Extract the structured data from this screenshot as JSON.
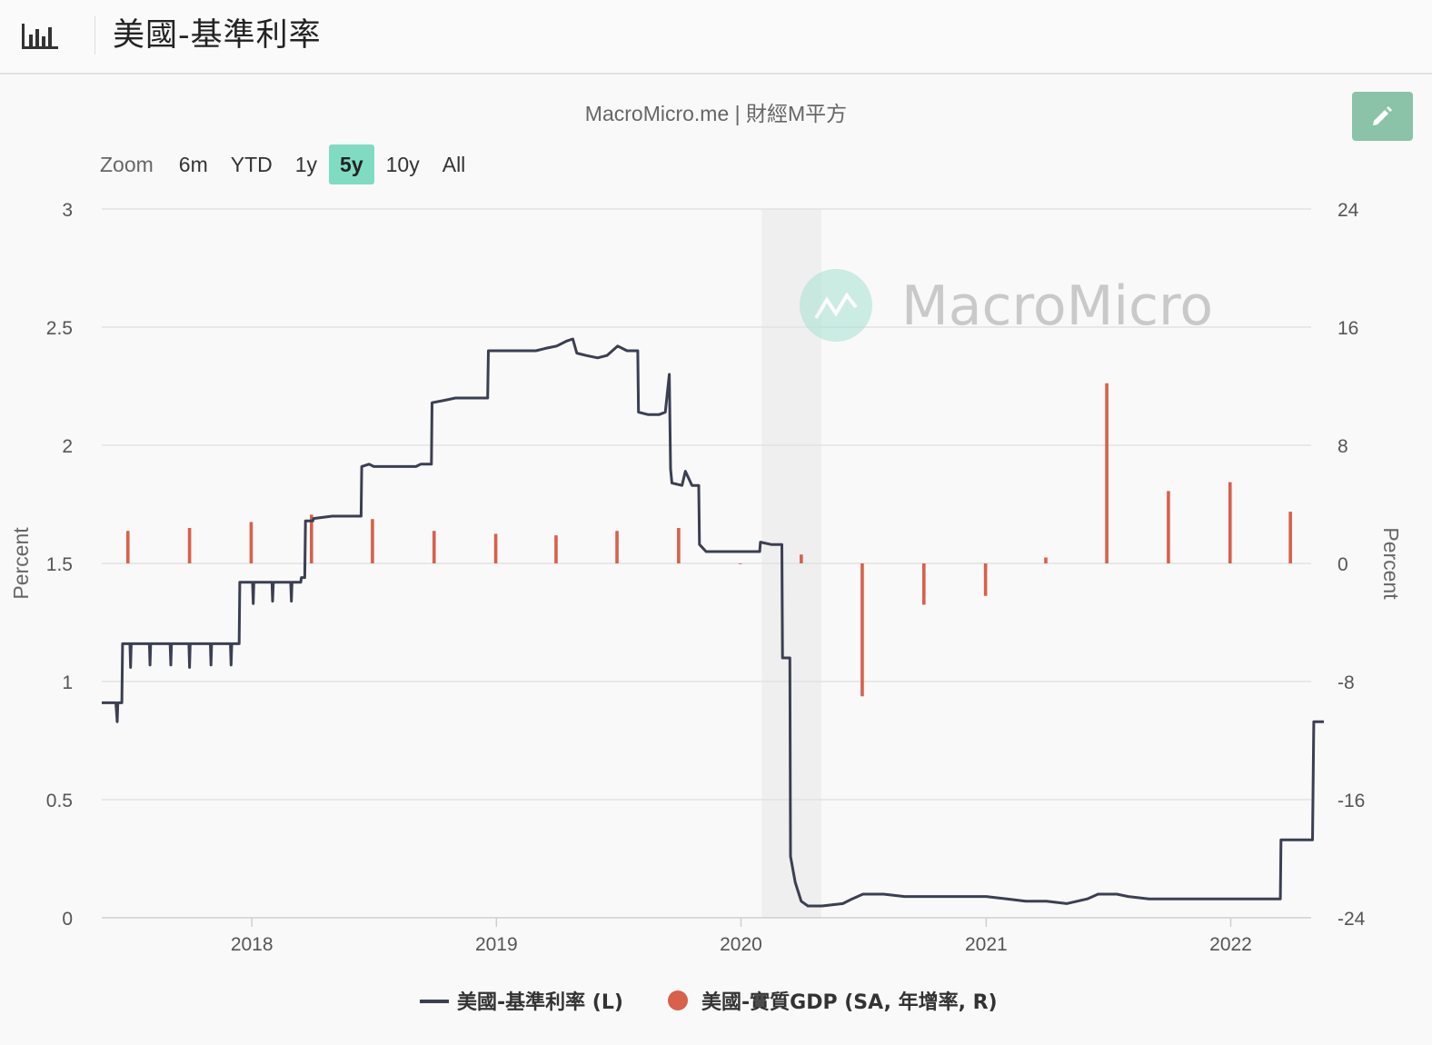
{
  "header": {
    "icon": "bar-chart-icon",
    "title": "美國-基準利率"
  },
  "credits": "MacroMicro.me | 財經M平方",
  "edit_button": {
    "icon": "pencil-icon",
    "color": "#8ac3a8"
  },
  "zoom": {
    "label": "Zoom",
    "buttons": [
      "6m",
      "YTD",
      "1y",
      "5y",
      "10y",
      "All"
    ],
    "selected": "5y"
  },
  "watermark": "MacroMicro",
  "chart_data": {
    "type": "line+column",
    "title": "",
    "left_axis": {
      "title": "Percent",
      "min": 0,
      "max": 3,
      "ticks": [
        "0",
        "0.5",
        "1",
        "1.5",
        "2",
        "2.5",
        "3"
      ]
    },
    "right_axis": {
      "title": "Percent",
      "min": -24,
      "max": 24,
      "ticks": [
        "-24",
        "-16",
        "-8",
        "0",
        "8",
        "16",
        "24"
      ]
    },
    "x_axis": {
      "min": "2017-05-22",
      "max": "2022-05-01",
      "ticks": [
        "2018",
        "2019",
        "2020",
        "2021",
        "2022"
      ]
    },
    "grid": true,
    "recession_band": {
      "from": "2020-02-01",
      "to": "2020-04-30",
      "color": "#efefef"
    },
    "series": [
      {
        "name": "美國-基準利率 (L)",
        "type": "line",
        "color": "#3b3f52",
        "axis": "left",
        "points": [
          [
            "2017-05-22",
            0.91
          ],
          [
            "2017-06-12",
            0.91
          ],
          [
            "2017-06-14",
            0.83
          ],
          [
            "2017-06-15",
            0.91
          ],
          [
            "2017-06-21",
            0.91
          ],
          [
            "2017-06-22",
            1.16
          ],
          [
            "2017-07-03",
            1.16
          ],
          [
            "2017-07-04",
            1.06
          ],
          [
            "2017-07-05",
            1.16
          ],
          [
            "2017-08-01",
            1.16
          ],
          [
            "2017-08-02",
            1.07
          ],
          [
            "2017-08-03",
            1.16
          ],
          [
            "2017-09-01",
            1.16
          ],
          [
            "2017-09-02",
            1.07
          ],
          [
            "2017-09-03",
            1.16
          ],
          [
            "2017-09-29",
            1.16
          ],
          [
            "2017-09-30",
            1.06
          ],
          [
            "2017-10-01",
            1.16
          ],
          [
            "2017-10-31",
            1.16
          ],
          [
            "2017-11-01",
            1.07
          ],
          [
            "2017-11-02",
            1.16
          ],
          [
            "2017-11-30",
            1.16
          ],
          [
            "2017-12-01",
            1.07
          ],
          [
            "2017-12-02",
            1.16
          ],
          [
            "2017-12-13",
            1.16
          ],
          [
            "2017-12-14",
            1.42
          ],
          [
            "2018-01-02",
            1.42
          ],
          [
            "2018-01-03",
            1.33
          ],
          [
            "2018-01-04",
            1.42
          ],
          [
            "2018-01-31",
            1.42
          ],
          [
            "2018-02-01",
            1.34
          ],
          [
            "2018-02-02",
            1.42
          ],
          [
            "2018-02-28",
            1.42
          ],
          [
            "2018-03-01",
            1.34
          ],
          [
            "2018-03-02",
            1.42
          ],
          [
            "2018-03-15",
            1.42
          ],
          [
            "2018-03-16",
            1.44
          ],
          [
            "2018-03-21",
            1.44
          ],
          [
            "2018-03-22",
            1.68
          ],
          [
            "2018-04-02",
            1.68
          ],
          [
            "2018-04-03",
            1.69
          ],
          [
            "2018-05-01",
            1.7
          ],
          [
            "2018-06-13",
            1.7
          ],
          [
            "2018-06-14",
            1.91
          ],
          [
            "2018-06-25",
            1.92
          ],
          [
            "2018-07-02",
            1.91
          ],
          [
            "2018-09-03",
            1.91
          ],
          [
            "2018-09-10",
            1.92
          ],
          [
            "2018-09-26",
            1.92
          ],
          [
            "2018-09-27",
            2.18
          ],
          [
            "2018-10-15",
            2.19
          ],
          [
            "2018-11-01",
            2.2
          ],
          [
            "2018-12-05",
            2.2
          ],
          [
            "2018-12-19",
            2.2
          ],
          [
            "2018-12-20",
            2.4
          ],
          [
            "2019-02-15",
            2.4
          ],
          [
            "2019-03-01",
            2.4
          ],
          [
            "2019-03-15",
            2.41
          ],
          [
            "2019-04-01",
            2.42
          ],
          [
            "2019-04-15",
            2.44
          ],
          [
            "2019-04-25",
            2.45
          ],
          [
            "2019-05-01",
            2.39
          ],
          [
            "2019-05-15",
            2.38
          ],
          [
            "2019-06-01",
            2.37
          ],
          [
            "2019-06-15",
            2.38
          ],
          [
            "2019-07-01",
            2.42
          ],
          [
            "2019-07-15",
            2.4
          ],
          [
            "2019-07-31",
            2.4
          ],
          [
            "2019-08-01",
            2.14
          ],
          [
            "2019-08-15",
            2.13
          ],
          [
            "2019-09-01",
            2.13
          ],
          [
            "2019-09-10",
            2.14
          ],
          [
            "2019-09-16",
            2.3
          ],
          [
            "2019-09-18",
            1.9
          ],
          [
            "2019-09-20",
            1.84
          ],
          [
            "2019-10-05",
            1.83
          ],
          [
            "2019-10-10",
            1.89
          ],
          [
            "2019-10-20",
            1.83
          ],
          [
            "2019-10-30",
            1.83
          ],
          [
            "2019-10-31",
            1.58
          ],
          [
            "2019-11-10",
            1.55
          ],
          [
            "2019-12-01",
            1.55
          ],
          [
            "2020-01-01",
            1.55
          ],
          [
            "2020-01-29",
            1.55
          ],
          [
            "2020-01-30",
            1.59
          ],
          [
            "2020-02-15",
            1.58
          ],
          [
            "2020-03-02",
            1.58
          ],
          [
            "2020-03-03",
            1.1
          ],
          [
            "2020-03-14",
            1.1
          ],
          [
            "2020-03-15",
            0.26
          ],
          [
            "2020-03-22",
            0.15
          ],
          [
            "2020-03-31",
            0.07
          ],
          [
            "2020-04-10",
            0.05
          ],
          [
            "2020-05-01",
            0.05
          ],
          [
            "2020-06-01",
            0.06
          ],
          [
            "2020-06-15",
            0.08
          ],
          [
            "2020-07-01",
            0.1
          ],
          [
            "2020-08-01",
            0.1
          ],
          [
            "2020-09-01",
            0.09
          ],
          [
            "2020-10-01",
            0.09
          ],
          [
            "2020-11-01",
            0.09
          ],
          [
            "2020-12-01",
            0.09
          ],
          [
            "2021-01-01",
            0.09
          ],
          [
            "2021-02-01",
            0.08
          ],
          [
            "2021-03-01",
            0.07
          ],
          [
            "2021-04-01",
            0.07
          ],
          [
            "2021-05-01",
            0.06
          ],
          [
            "2021-06-01",
            0.08
          ],
          [
            "2021-06-17",
            0.1
          ],
          [
            "2021-07-15",
            0.1
          ],
          [
            "2021-08-01",
            0.09
          ],
          [
            "2021-09-01",
            0.08
          ],
          [
            "2021-10-01",
            0.08
          ],
          [
            "2021-11-01",
            0.08
          ],
          [
            "2021-12-01",
            0.08
          ],
          [
            "2022-01-01",
            0.08
          ],
          [
            "2022-02-01",
            0.08
          ],
          [
            "2022-03-16",
            0.08
          ],
          [
            "2022-03-17",
            0.33
          ],
          [
            "2022-04-01",
            0.33
          ],
          [
            "2022-05-03",
            0.33
          ],
          [
            "2022-05-05",
            0.83
          ],
          [
            "2022-05-20",
            0.83
          ]
        ]
      },
      {
        "name": "美國-實質GDP (SA, 年增率, R)",
        "type": "column",
        "color": "#d9604a",
        "axis": "right",
        "points": [
          [
            "2017-06-30",
            2.2
          ],
          [
            "2017-09-30",
            2.4
          ],
          [
            "2017-12-31",
            2.8
          ],
          [
            "2018-03-31",
            3.3
          ],
          [
            "2018-06-30",
            3.0
          ],
          [
            "2018-09-30",
            2.2
          ],
          [
            "2018-12-31",
            2.0
          ],
          [
            "2019-03-31",
            1.9
          ],
          [
            "2019-06-30",
            2.2
          ],
          [
            "2019-09-30",
            2.4
          ],
          [
            "2019-12-31",
            0.0
          ],
          [
            "2020-03-31",
            0.6
          ],
          [
            "2020-06-30",
            -9.0
          ],
          [
            "2020-09-30",
            -2.8
          ],
          [
            "2020-12-31",
            -2.2
          ],
          [
            "2021-03-31",
            0.4
          ],
          [
            "2021-06-30",
            12.2
          ],
          [
            "2021-09-30",
            4.9
          ],
          [
            "2021-12-31",
            5.5
          ],
          [
            "2022-03-31",
            3.5
          ]
        ]
      }
    ],
    "legend": {
      "position": "bottom-center"
    }
  }
}
